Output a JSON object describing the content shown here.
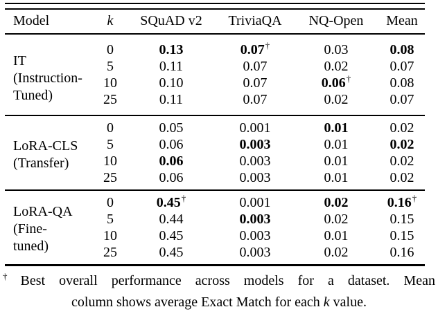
{
  "table": {
    "columns": [
      "Model",
      "k",
      "SQuAD v2",
      "TriviaQA",
      "NQ-Open",
      "Mean"
    ],
    "dagger_symbol": "†",
    "groups": [
      {
        "model_lines": [
          "IT",
          "(Instruction-",
          "Tuned)"
        ],
        "rows": [
          {
            "k": "0",
            "values": [
              {
                "text": "0.13",
                "bold": true
              },
              {
                "text": "0.07",
                "bold": true,
                "dagger": true
              },
              {
                "text": "0.03"
              },
              {
                "text": "0.08",
                "bold": true
              }
            ]
          },
          {
            "k": "5",
            "values": [
              {
                "text": "0.11"
              },
              {
                "text": "0.07"
              },
              {
                "text": "0.02"
              },
              {
                "text": "0.07"
              }
            ]
          },
          {
            "k": "10",
            "values": [
              {
                "text": "0.10"
              },
              {
                "text": "0.07"
              },
              {
                "text": "0.06",
                "bold": true,
                "dagger": true
              },
              {
                "text": "0.08"
              }
            ]
          },
          {
            "k": "25",
            "values": [
              {
                "text": "0.11"
              },
              {
                "text": "0.07"
              },
              {
                "text": "0.02"
              },
              {
                "text": "0.07"
              }
            ]
          }
        ]
      },
      {
        "model_lines": [
          "LoRA-CLS",
          "(Transfer)"
        ],
        "rows": [
          {
            "k": "0",
            "values": [
              {
                "text": "0.05"
              },
              {
                "text": "0.001"
              },
              {
                "text": "0.01",
                "bold": true
              },
              {
                "text": "0.02"
              }
            ]
          },
          {
            "k": "5",
            "values": [
              {
                "text": "0.06"
              },
              {
                "text": "0.003",
                "bold": true
              },
              {
                "text": "0.01"
              },
              {
                "text": "0.02",
                "bold": true
              }
            ]
          },
          {
            "k": "10",
            "values": [
              {
                "text": "0.06",
                "bold": true
              },
              {
                "text": "0.003"
              },
              {
                "text": "0.01"
              },
              {
                "text": "0.02"
              }
            ]
          },
          {
            "k": "25",
            "values": [
              {
                "text": "0.06"
              },
              {
                "text": "0.003"
              },
              {
                "text": "0.01"
              },
              {
                "text": "0.02"
              }
            ]
          }
        ]
      },
      {
        "model_lines": [
          "LoRA-QA",
          "(Fine-",
          "tuned)"
        ],
        "rows": [
          {
            "k": "0",
            "values": [
              {
                "text": "0.45",
                "bold": true,
                "dagger": true
              },
              {
                "text": "0.001"
              },
              {
                "text": "0.02",
                "bold": true
              },
              {
                "text": "0.16",
                "bold": true,
                "dagger": true
              }
            ]
          },
          {
            "k": "5",
            "values": [
              {
                "text": "0.44"
              },
              {
                "text": "0.003",
                "bold": true
              },
              {
                "text": "0.02"
              },
              {
                "text": "0.15"
              }
            ]
          },
          {
            "k": "10",
            "values": [
              {
                "text": "0.45"
              },
              {
                "text": "0.003"
              },
              {
                "text": "0.01"
              },
              {
                "text": "0.15"
              }
            ]
          },
          {
            "k": "25",
            "values": [
              {
                "text": "0.45"
              },
              {
                "text": "0.003"
              },
              {
                "text": "0.02"
              },
              {
                "text": "0.16"
              }
            ]
          }
        ]
      }
    ]
  },
  "footnote": {
    "marker": "†",
    "line1": "Best overall performance across models for a dataset. Mean",
    "line2_pre": "column shows average Exact Match for each ",
    "line2_italic_k": "k",
    "line2_post": " value."
  }
}
